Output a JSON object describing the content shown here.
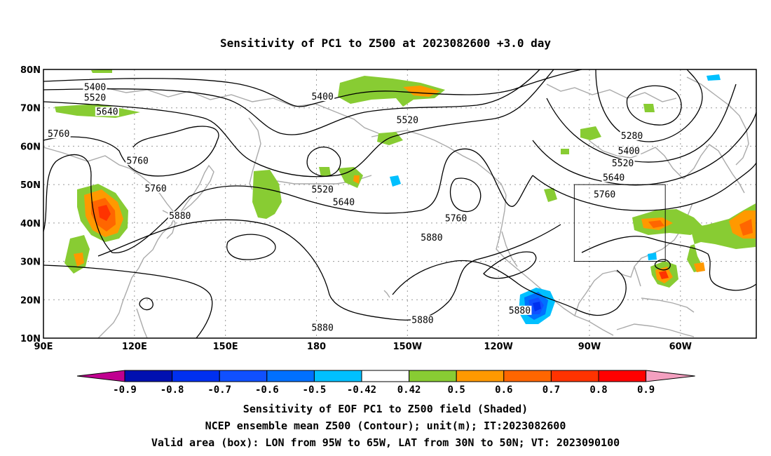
{
  "title": "Sensitivity of PC1 to Z500 at 2023082600 +3.0 day",
  "colors": {
    "coast": "#aaaaaa",
    "contour": "#000000",
    "neg": [
      "#c00090",
      "#0010b0",
      "#0030f0",
      "#1050ff",
      "#0070ff",
      "#00c0ff"
    ],
    "neutral": "#ffffff",
    "pos": [
      "#88cc33",
      "#ff9900",
      "#ff6600",
      "#ff3300",
      "#ff0000",
      "#f4a0c0"
    ]
  },
  "map": {
    "lon_ticks": [
      "90E",
      "120E",
      "150E",
      "180",
      "150W",
      "120W",
      "90W",
      "60W"
    ],
    "lat_ticks": [
      "80N",
      "70N",
      "60N",
      "50N",
      "40N",
      "30N",
      "20N",
      "10N"
    ],
    "valid_box": {
      "lon_w": "95W",
      "lon_e": "65W",
      "lat_s": "30N",
      "lat_n": "50N"
    },
    "contour_labels": [
      {
        "text": "5400",
        "lon": 107,
        "lat": 75
      },
      {
        "text": "5520",
        "lon": 107,
        "lat": 72.2
      },
      {
        "text": "5640",
        "lon": 111,
        "lat": 68.6
      },
      {
        "text": "5760",
        "lon": 95,
        "lat": 62.8
      },
      {
        "text": "5760",
        "lon": 121,
        "lat": 55.8
      },
      {
        "text": "5760",
        "lon": 127,
        "lat": 48.6
      },
      {
        "text": "5880",
        "lon": 135,
        "lat": 41.4
      },
      {
        "text": "5400",
        "lon": -178,
        "lat": 72.5
      },
      {
        "text": "5520",
        "lon": -150,
        "lat": 66.4
      },
      {
        "text": "5520",
        "lon": -178,
        "lat": 48.3
      },
      {
        "text": "5640",
        "lon": -171,
        "lat": 45
      },
      {
        "text": "5760",
        "lon": -134,
        "lat": 40.8
      },
      {
        "text": "5880",
        "lon": -142,
        "lat": 35.8
      },
      {
        "text": "5880",
        "lon": -178,
        "lat": 12.3
      },
      {
        "text": "5880",
        "lon": -145,
        "lat": 14.3
      },
      {
        "text": "5880",
        "lon": -113,
        "lat": 16.8
      },
      {
        "text": "5280",
        "lon": -76,
        "lat": 62.3
      },
      {
        "text": "5400",
        "lon": -77,
        "lat": 58.3
      },
      {
        "text": "5520",
        "lon": -79,
        "lat": 55.1
      },
      {
        "text": "5640",
        "lon": -82,
        "lat": 51.4
      },
      {
        "text": "5760",
        "lon": -85,
        "lat": 47
      }
    ]
  },
  "colorbar": {
    "labels": [
      "-0.9",
      "-0.8",
      "-0.7",
      "-0.6",
      "-0.5",
      "-0.42",
      "0.42",
      "0.5",
      "0.6",
      "0.7",
      "0.8",
      "0.9"
    ]
  },
  "captions": {
    "line1": "Sensitivity of EOF PC1 to Z500 field (Shaded)",
    "line2": "NCEP ensemble mean Z500 (Contour); unit(m); IT:2023082600",
    "line3": "Valid area (box): LON from 95W to 65W, LAT from 30N to 50N; VT: 2023090100"
  }
}
